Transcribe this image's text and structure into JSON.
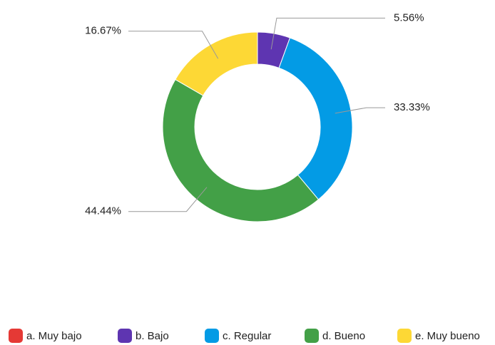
{
  "chart_data": {
    "type": "donut",
    "categories": [
      "a. Muy bajo",
      "b. Bajo",
      "c. Regular",
      "d. Bueno",
      "e. Muy bueno"
    ],
    "values": [
      0,
      5.56,
      33.33,
      44.44,
      16.67
    ],
    "value_labels": [
      null,
      "5.56%",
      "33.33%",
      "44.44%",
      "16.67%"
    ],
    "colors": [
      "#e53935",
      "#5e35b1",
      "#039be5",
      "#43a047",
      "#fdd835"
    ]
  }
}
